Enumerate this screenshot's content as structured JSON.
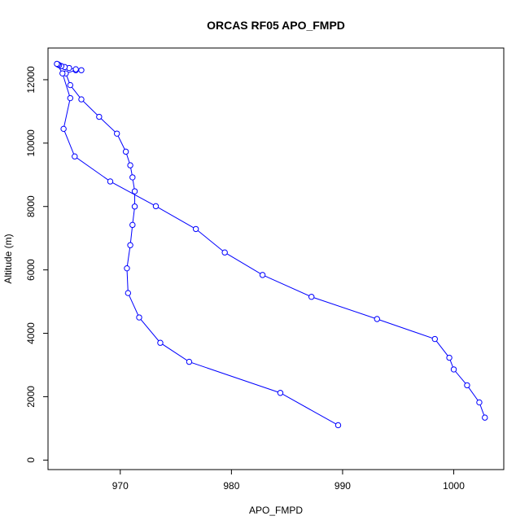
{
  "chart_data": {
    "type": "line",
    "title": "ORCAS RF05 APO_FMPD",
    "xlabel": "APO_FMPD",
    "ylabel": "Altitude (m)",
    "xlim": [
      963.5,
      1004.5
    ],
    "ylim": [
      -300,
      13000
    ],
    "x_ticks": [
      970,
      980,
      990,
      1000
    ],
    "y_ticks": [
      0,
      2000,
      4000,
      6000,
      8000,
      10000,
      12000
    ],
    "grid": false,
    "marker": "open-circle",
    "line_color": "#0000ff",
    "series": [
      {
        "x": [
          989.6,
          984.4,
          976.2,
          973.6,
          971.7,
          970.7,
          970.6,
          970.9,
          971.1,
          971.3,
          971.3,
          971.1,
          970.9,
          970.5,
          969.7,
          968.1,
          966.5,
          965.5,
          965.1,
          966.0,
          966.5,
          966.0,
          965.4,
          965.0,
          964.7,
          964.5,
          964.4,
          964.3,
          964.8,
          965.5,
          964.9,
          965.9,
          969.1,
          973.2,
          976.8,
          979.4,
          982.8,
          987.2,
          993.1,
          998.3,
          999.6,
          1000.0,
          1001.2,
          1002.3,
          1002.8
        ],
        "y": [
          1100,
          2120,
          3100,
          3700,
          4500,
          5270,
          6050,
          6780,
          7420,
          8000,
          8480,
          8920,
          9300,
          9730,
          10300,
          10830,
          11380,
          11830,
          12200,
          12300,
          12300,
          12330,
          12370,
          12400,
          12430,
          12460,
          12480,
          12500,
          12200,
          11420,
          10450,
          9580,
          8790,
          8010,
          7290,
          6550,
          5840,
          5150,
          4450,
          3820,
          3230,
          2860,
          2360,
          1820,
          1340
        ]
      }
    ]
  }
}
